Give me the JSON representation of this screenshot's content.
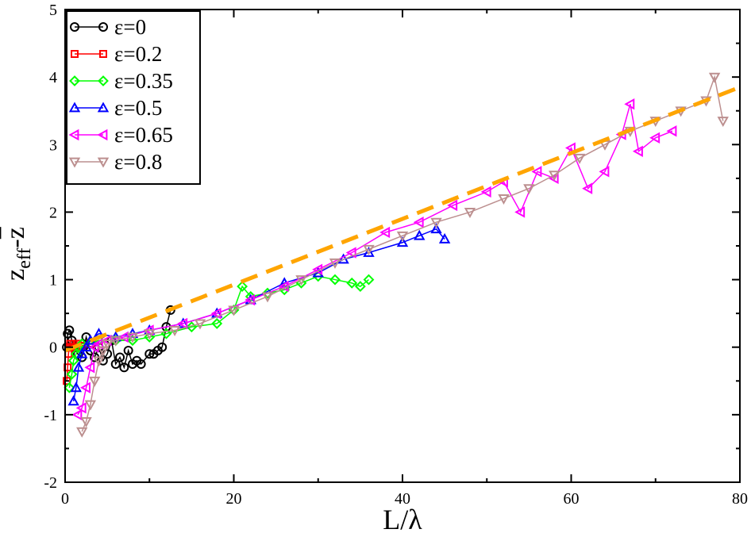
{
  "chart_data": {
    "type": "scatter",
    "xlabel": "L/λ",
    "ylabel": "z_eff - z̄",
    "xlim": [
      0,
      80
    ],
    "ylim": [
      -2,
      5
    ],
    "x_ticks": [
      0,
      20,
      40,
      60,
      80
    ],
    "y_ticks": [
      -2,
      -1,
      0,
      1,
      2,
      3,
      4,
      5
    ],
    "grid": false,
    "legend_position": "top-left",
    "series": [
      {
        "name": "ε=0",
        "marker": "circle",
        "color": "#000000",
        "x": [
          0.2,
          0.3,
          0.5,
          0.8,
          1.0,
          1.5,
          2.0,
          2.5,
          3.0,
          3.5,
          4.0,
          4.5,
          5.0,
          5.5,
          6.0,
          6.5,
          7.0,
          7.5,
          8.0,
          8.5,
          9.0,
          10.0,
          10.5,
          11.0,
          11.5,
          12.0,
          12.5
        ],
        "y": [
          0.0,
          0.2,
          0.25,
          0.1,
          0.0,
          -0.1,
          -0.15,
          0.15,
          -0.05,
          -0.15,
          0.0,
          -0.2,
          -0.1,
          0.1,
          -0.25,
          -0.15,
          -0.3,
          -0.05,
          -0.25,
          -0.2,
          -0.25,
          -0.1,
          -0.1,
          -0.05,
          0.0,
          0.3,
          0.55
        ]
      },
      {
        "name": "ε=0.2",
        "marker": "square",
        "color": "#ff0000",
        "x": [
          0.2,
          0.3,
          0.4,
          0.5,
          0.6,
          0.8,
          1.0,
          1.2,
          1.5,
          2.0,
          3.0,
          4.0
        ],
        "y": [
          -0.5,
          -0.3,
          -0.1,
          0.0,
          0.05,
          0.0,
          0.05,
          0.0,
          0.05,
          0.02,
          0.05,
          0.1
        ]
      },
      {
        "name": "ε=0.35",
        "marker": "diamond",
        "color": "#00ff00",
        "x": [
          0.5,
          0.8,
          1.0,
          1.3,
          1.6,
          2.0,
          3.0,
          4.0,
          6.0,
          8.0,
          10.0,
          12.0,
          15.0,
          18.0,
          20.0,
          21.0,
          22.0,
          24.0,
          26.0,
          28.0,
          30.0,
          32.0,
          34.0,
          35.0,
          36.0
        ],
        "y": [
          -0.6,
          -0.4,
          -0.2,
          -0.1,
          0.0,
          0.05,
          0.05,
          0.1,
          0.1,
          0.1,
          0.15,
          0.2,
          0.3,
          0.35,
          0.55,
          0.9,
          0.75,
          0.8,
          0.85,
          0.95,
          1.05,
          1.0,
          0.95,
          0.9,
          1.0
        ]
      },
      {
        "name": "ε=0.5",
        "marker": "triangle-up",
        "color": "#0000ff",
        "x": [
          1.0,
          1.3,
          1.6,
          2.0,
          2.5,
          3.0,
          4.0,
          6.0,
          8.0,
          10.0,
          14.0,
          18.0,
          22.0,
          26.0,
          30.0,
          33.0,
          36.0,
          40.0,
          42.0,
          44.0,
          45.0
        ],
        "y": [
          -0.8,
          -0.6,
          -0.3,
          -0.1,
          0.0,
          0.1,
          0.2,
          0.15,
          0.2,
          0.25,
          0.35,
          0.5,
          0.7,
          0.95,
          1.1,
          1.3,
          1.4,
          1.55,
          1.65,
          1.75,
          1.6
        ]
      },
      {
        "name": "ε=0.65",
        "marker": "triangle-left",
        "color": "#ff00ff",
        "x": [
          1.5,
          2.0,
          2.5,
          3.0,
          3.5,
          4.0,
          5.0,
          7.0,
          10.0,
          14.0,
          18.0,
          22.0,
          26.0,
          30.0,
          34.0,
          38.0,
          42.0,
          46.0,
          50.0,
          52.0,
          54.0,
          56.0,
          58.0,
          60.0,
          62.0,
          64.0,
          66.0,
          67.0,
          68.0,
          70.0,
          72.0
        ],
        "y": [
          -1.0,
          -0.9,
          -0.6,
          -0.3,
          0.0,
          0.05,
          0.1,
          0.15,
          0.25,
          0.35,
          0.5,
          0.7,
          0.9,
          1.15,
          1.4,
          1.7,
          1.85,
          2.1,
          2.3,
          2.45,
          2.0,
          2.6,
          2.5,
          2.95,
          2.35,
          2.6,
          3.15,
          3.6,
          2.9,
          3.1,
          3.2
        ]
      },
      {
        "name": "ε=0.8",
        "marker": "triangle-down",
        "color": "#bc8f8f",
        "x": [
          2.0,
          2.5,
          3.0,
          3.5,
          4.0,
          4.5,
          5.0,
          6.0,
          8.0,
          10.0,
          13.0,
          16.0,
          20.0,
          24.0,
          28.0,
          32.0,
          36.0,
          40.0,
          44.0,
          48.0,
          52.0,
          55.0,
          58.0,
          61.0,
          64.0,
          67.0,
          70.0,
          73.0,
          76.0,
          77.0,
          78.0
        ],
        "y": [
          -1.25,
          -1.1,
          -0.85,
          -0.5,
          -0.2,
          -0.05,
          0.05,
          0.1,
          0.15,
          0.2,
          0.25,
          0.35,
          0.55,
          0.75,
          1.0,
          1.25,
          1.45,
          1.65,
          1.85,
          2.0,
          2.2,
          2.35,
          2.55,
          2.8,
          3.0,
          3.2,
          3.35,
          3.5,
          3.65,
          4.0,
          3.35
        ]
      },
      {
        "name": "",
        "style": "dashed-fit",
        "color": "#ffa500",
        "x": [
          0,
          80
        ],
        "y": [
          -0.05,
          3.85
        ]
      }
    ]
  }
}
